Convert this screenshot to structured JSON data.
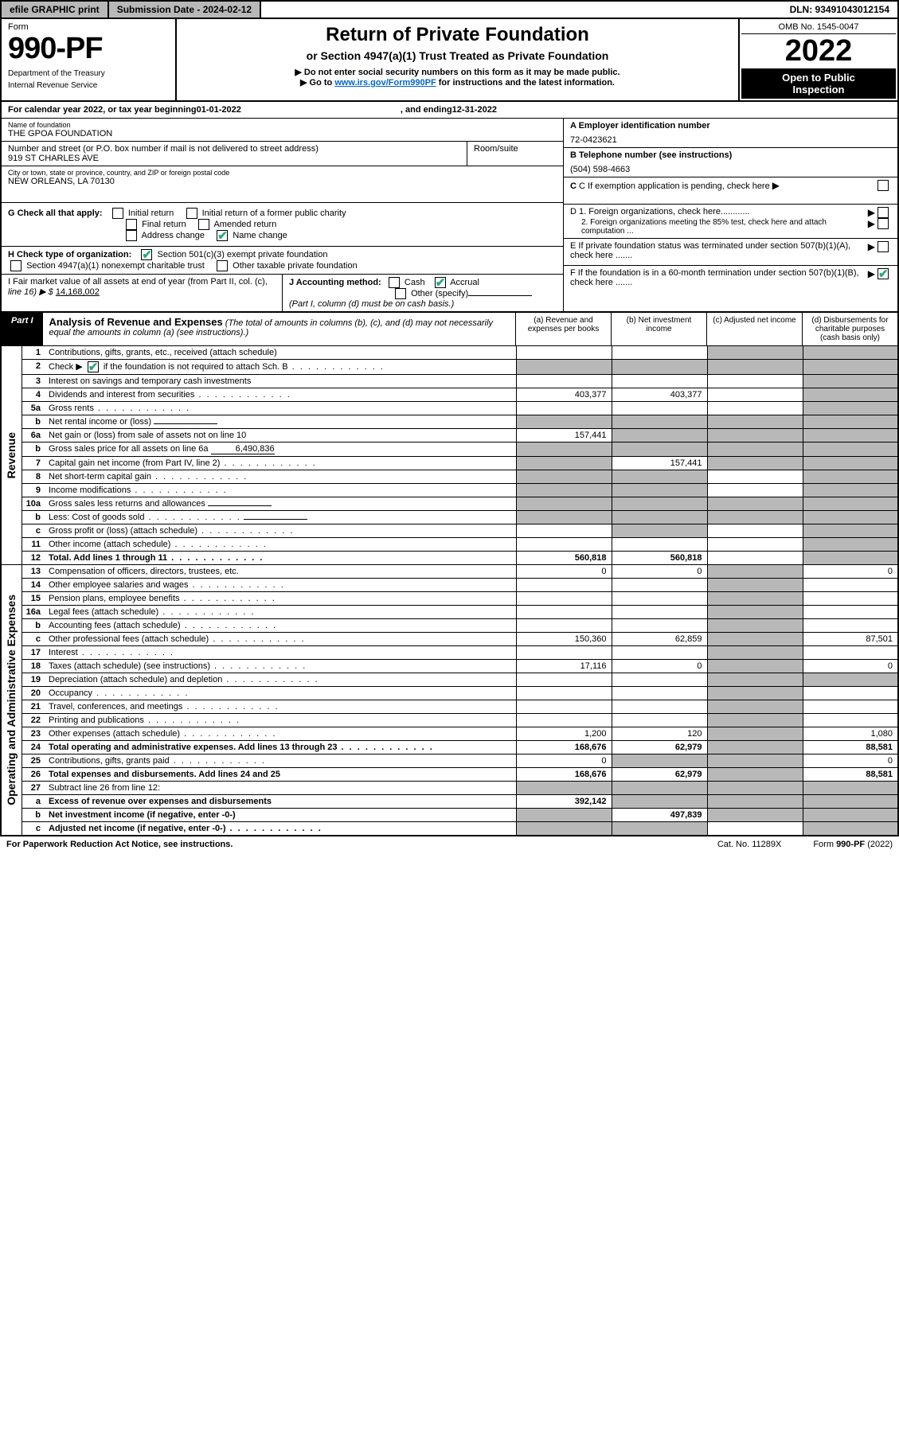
{
  "topbar": {
    "efile": "efile GRAPHIC print",
    "submission_label": "Submission Date - 2024-02-12",
    "dln_label": "DLN: 93491043012154"
  },
  "header": {
    "form_label": "Form",
    "form_number": "990-PF",
    "dept1": "Department of the Treasury",
    "dept2": "Internal Revenue Service",
    "title1": "Return of Private Foundation",
    "title2": "or Section 4947(a)(1) Trust Treated as Private Foundation",
    "instr1": "▶ Do not enter social security numbers on this form as it may be made public.",
    "instr2_pre": "▶ Go to ",
    "instr2_link": "www.irs.gov/Form990PF",
    "instr2_post": " for instructions and the latest information.",
    "omb": "OMB No. 1545-0047",
    "year": "2022",
    "open1": "Open to Public",
    "open2": "Inspection"
  },
  "calendar": {
    "pre": "For calendar year 2022, or tax year beginning ",
    "begin": "01-01-2022",
    "mid": ", and ending ",
    "end": "12-31-2022"
  },
  "id": {
    "name_label": "Name of foundation",
    "name": "THE GPOA FOUNDATION",
    "addr_label": "Number and street (or P.O. box number if mail is not delivered to street address)",
    "addr": "919 ST CHARLES AVE",
    "room_label": "Room/suite",
    "city_label": "City or town, state or province, country, and ZIP or foreign postal code",
    "city": "NEW ORLEANS, LA  70130",
    "ein_label": "A Employer identification number",
    "ein": "72-0423621",
    "phone_label": "B Telephone number (see instructions)",
    "phone": "(504) 598-4663",
    "c_label": "C If exemption application is pending, check here",
    "d1_label": "D 1. Foreign organizations, check here............",
    "d2_label": "2. Foreign organizations meeting the 85% test, check here and attach computation ...",
    "e_label": "E  If private foundation status was terminated under section 507(b)(1)(A), check here .......",
    "f_label": "F  If the foundation is in a 60-month termination under section 507(b)(1)(B), check here .......",
    "g_label": "G Check all that apply:",
    "g_opts": [
      "Initial return",
      "Initial return of a former public charity",
      "Final return",
      "Amended return",
      "Address change",
      "Name change"
    ],
    "h_label": "H Check type of organization:",
    "h_opt1": "Section 501(c)(3) exempt private foundation",
    "h_opt2": "Section 4947(a)(1) nonexempt charitable trust",
    "h_opt3": "Other taxable private foundation",
    "i_label1": "I Fair market value of all assets at end of year (from Part II, col. (c),",
    "i_label2": "line 16) ▶ $ ",
    "i_value": "14,168,002",
    "j_label": "J Accounting method:",
    "j_opt1": "Cash",
    "j_opt2": "Accrual",
    "j_opt3": "Other (specify)",
    "j_note": "(Part I, column (d) must be on cash basis.)"
  },
  "part1": {
    "label": "Part I",
    "title": "Analysis of Revenue and Expenses",
    "subtitle": "(The total of amounts in columns (b), (c), and (d) may not necessarily equal the amounts in column (a) (see instructions).)",
    "col_a": "(a)  Revenue and expenses per books",
    "col_b": "(b)  Net investment income",
    "col_c": "(c)  Adjusted net income",
    "col_d": "(d)  Disbursements for charitable purposes (cash basis only)",
    "side_rev": "Revenue",
    "side_exp": "Operating and Administrative Expenses"
  },
  "rows": [
    {
      "n": "1",
      "desc": "Contributions, gifts, grants, etc., received (attach schedule)",
      "a": "",
      "b": "",
      "c": "sh",
      "d": "sh"
    },
    {
      "n": "2",
      "desc": "Check ▶ ☑ if the foundation is not required to attach Sch. B",
      "dots": true,
      "a": "sh",
      "b": "sh",
      "c": "sh",
      "d": "sh"
    },
    {
      "n": "3",
      "desc": "Interest on savings and temporary cash investments",
      "a": "",
      "b": "",
      "c": "",
      "d": "sh"
    },
    {
      "n": "4",
      "desc": "Dividends and interest from securities",
      "dots": true,
      "a": "403,377",
      "b": "403,377",
      "c": "",
      "d": "sh"
    },
    {
      "n": "5a",
      "desc": "Gross rents",
      "dots": true,
      "a": "",
      "b": "",
      "c": "",
      "d": "sh"
    },
    {
      "n": "b",
      "desc": "Net rental income or (loss)",
      "inline": "",
      "a": "sh",
      "b": "sh",
      "c": "sh",
      "d": "sh"
    },
    {
      "n": "6a",
      "desc": "Net gain or (loss) from sale of assets not on line 10",
      "a": "157,441",
      "b": "sh",
      "c": "sh",
      "d": "sh"
    },
    {
      "n": "b",
      "desc": "Gross sales price for all assets on line 6a",
      "inline": "6,490,836",
      "a": "sh",
      "b": "sh",
      "c": "sh",
      "d": "sh"
    },
    {
      "n": "7",
      "desc": "Capital gain net income (from Part IV, line 2)",
      "dots": true,
      "a": "sh",
      "b": "157,441",
      "c": "sh",
      "d": "sh"
    },
    {
      "n": "8",
      "desc": "Net short-term capital gain",
      "dots": true,
      "a": "sh",
      "b": "sh",
      "c": "",
      "d": "sh"
    },
    {
      "n": "9",
      "desc": "Income modifications",
      "dots": true,
      "a": "sh",
      "b": "sh",
      "c": "",
      "d": "sh"
    },
    {
      "n": "10a",
      "desc": "Gross sales less returns and allowances",
      "inline": "",
      "a": "sh",
      "b": "sh",
      "c": "sh",
      "d": "sh"
    },
    {
      "n": "b",
      "desc": "Less: Cost of goods sold",
      "dots": true,
      "inline": "",
      "a": "sh",
      "b": "sh",
      "c": "sh",
      "d": "sh"
    },
    {
      "n": "c",
      "desc": "Gross profit or (loss) (attach schedule)",
      "dots": true,
      "a": "",
      "b": "sh",
      "c": "",
      "d": "sh"
    },
    {
      "n": "11",
      "desc": "Other income (attach schedule)",
      "dots": true,
      "a": "",
      "b": "",
      "c": "",
      "d": "sh"
    },
    {
      "n": "12",
      "desc": "Total. Add lines 1 through 11",
      "dots": true,
      "bold": true,
      "a": "560,818",
      "b": "560,818",
      "c": "",
      "d": "sh"
    },
    {
      "n": "13",
      "desc": "Compensation of officers, directors, trustees, etc.",
      "a": "0",
      "b": "0",
      "c": "sh",
      "d": "0"
    },
    {
      "n": "14",
      "desc": "Other employee salaries and wages",
      "dots": true,
      "a": "",
      "b": "",
      "c": "sh",
      "d": ""
    },
    {
      "n": "15",
      "desc": "Pension plans, employee benefits",
      "dots": true,
      "a": "",
      "b": "",
      "c": "sh",
      "d": ""
    },
    {
      "n": "16a",
      "desc": "Legal fees (attach schedule)",
      "dots": true,
      "a": "",
      "b": "",
      "c": "sh",
      "d": ""
    },
    {
      "n": "b",
      "desc": "Accounting fees (attach schedule)",
      "dots": true,
      "a": "",
      "b": "",
      "c": "sh",
      "d": ""
    },
    {
      "n": "c",
      "desc": "Other professional fees (attach schedule)",
      "dots": true,
      "a": "150,360",
      "b": "62,859",
      "c": "sh",
      "d": "87,501"
    },
    {
      "n": "17",
      "desc": "Interest",
      "dots": true,
      "a": "",
      "b": "",
      "c": "sh",
      "d": ""
    },
    {
      "n": "18",
      "desc": "Taxes (attach schedule) (see instructions)",
      "dots": true,
      "a": "17,116",
      "b": "0",
      "c": "sh",
      "d": "0"
    },
    {
      "n": "19",
      "desc": "Depreciation (attach schedule) and depletion",
      "dots": true,
      "a": "",
      "b": "",
      "c": "sh",
      "d": "sh"
    },
    {
      "n": "20",
      "desc": "Occupancy",
      "dots": true,
      "a": "",
      "b": "",
      "c": "sh",
      "d": ""
    },
    {
      "n": "21",
      "desc": "Travel, conferences, and meetings",
      "dots": true,
      "a": "",
      "b": "",
      "c": "sh",
      "d": ""
    },
    {
      "n": "22",
      "desc": "Printing and publications",
      "dots": true,
      "a": "",
      "b": "",
      "c": "sh",
      "d": ""
    },
    {
      "n": "23",
      "desc": "Other expenses (attach schedule)",
      "dots": true,
      "a": "1,200",
      "b": "120",
      "c": "sh",
      "d": "1,080"
    },
    {
      "n": "24",
      "desc": "Total operating and administrative expenses. Add lines 13 through 23",
      "dots": true,
      "bold": true,
      "a": "168,676",
      "b": "62,979",
      "c": "sh",
      "d": "88,581"
    },
    {
      "n": "25",
      "desc": "Contributions, gifts, grants paid",
      "dots": true,
      "a": "0",
      "b": "sh",
      "c": "sh",
      "d": "0"
    },
    {
      "n": "26",
      "desc": "Total expenses and disbursements. Add lines 24 and 25",
      "bold": true,
      "a": "168,676",
      "b": "62,979",
      "c": "sh",
      "d": "88,581"
    },
    {
      "n": "27",
      "desc": "Subtract line 26 from line 12:",
      "a": "sh",
      "b": "sh",
      "c": "sh",
      "d": "sh"
    },
    {
      "n": "a",
      "desc": "Excess of revenue over expenses and disbursements",
      "bold": true,
      "a": "392,142",
      "b": "sh",
      "c": "sh",
      "d": "sh"
    },
    {
      "n": "b",
      "desc": "Net investment income (if negative, enter -0-)",
      "bold": true,
      "a": "sh",
      "b": "497,839",
      "c": "sh",
      "d": "sh"
    },
    {
      "n": "c",
      "desc": "Adjusted net income (if negative, enter -0-)",
      "dots": true,
      "bold": true,
      "a": "sh",
      "b": "sh",
      "c": "",
      "d": "sh"
    }
  ],
  "footer": {
    "paperwork": "For Paperwork Reduction Act Notice, see instructions.",
    "cat": "Cat. No. 11289X",
    "form": "Form 990-PF (2022)"
  },
  "colors": {
    "gray": "#b8b8b8",
    "link": "#0066cc",
    "check": "#22aa77"
  }
}
